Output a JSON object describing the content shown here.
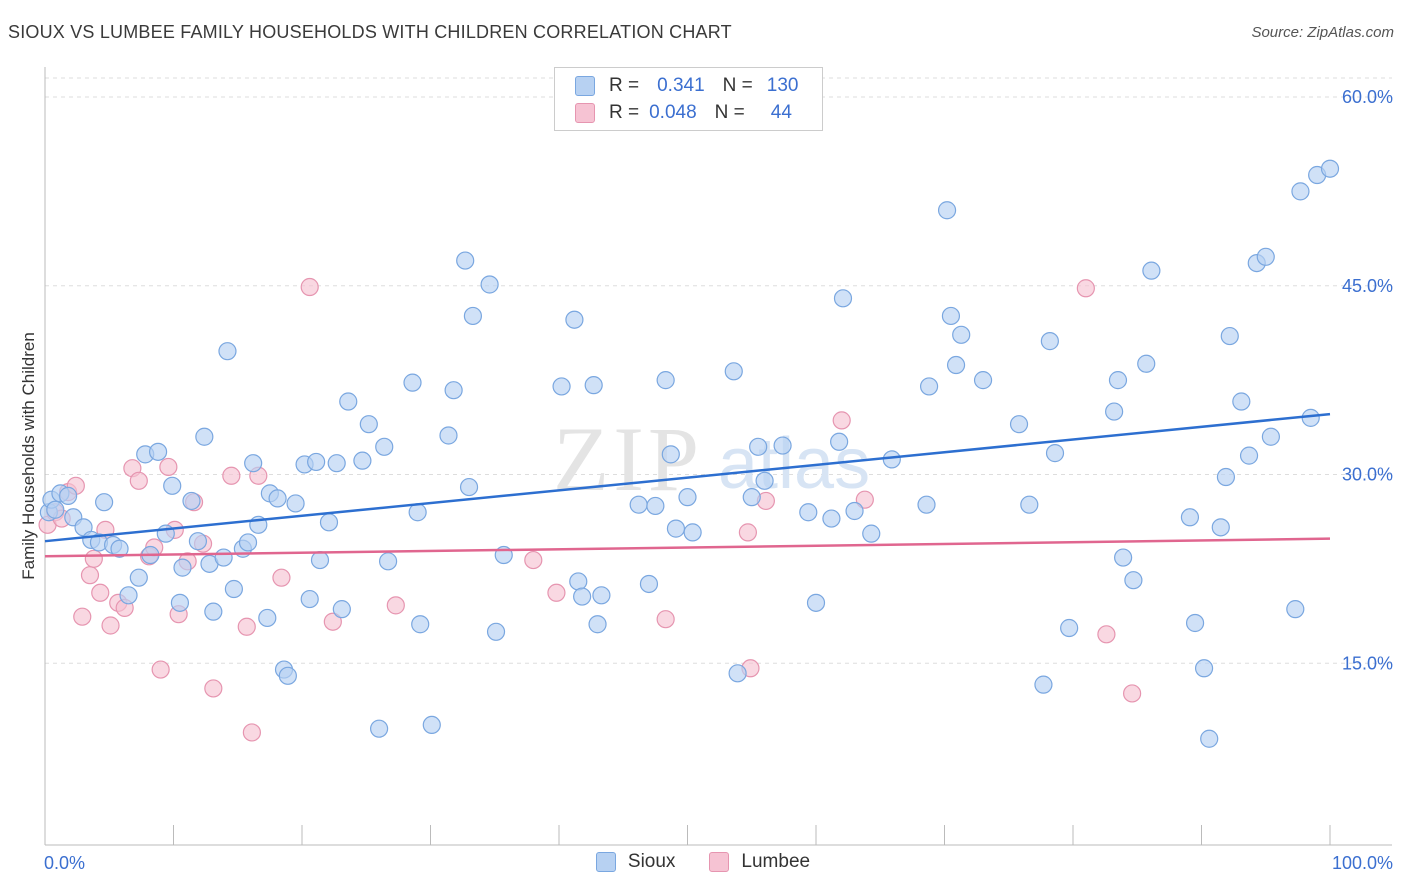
{
  "header": {
    "title": "SIOUX VS LUMBEE FAMILY HOUSEHOLDS WITH CHILDREN CORRELATION CHART",
    "source": "Source: ZipAtlas.com"
  },
  "watermark": {
    "zip": "ZIP",
    "atlas": "atlas"
  },
  "legend_top": {
    "r_label": "R =",
    "n_label": "N =",
    "rows": [
      {
        "r": "0.341",
        "n": "130"
      },
      {
        "r": "0.048",
        "n": "44"
      }
    ]
  },
  "colors": {
    "sioux_fill": "#b7d1f2",
    "sioux_stroke": "#7aa7e0",
    "sioux_line": "#2d6fd0",
    "lumbee_fill": "#f6c3d3",
    "lumbee_stroke": "#e695b0",
    "lumbee_line": "#e0668f",
    "grid": "#dddddd",
    "tick_label": "#3b6fd0"
  },
  "chart_data": {
    "type": "scatter",
    "title": "SIOUX VS LUMBEE FAMILY HOUSEHOLDS WITH CHILDREN CORRELATION CHART",
    "xlabel": "",
    "ylabel": "Family Households with Children",
    "xlim": [
      0,
      100
    ],
    "ylim": [
      0,
      60
    ],
    "x_tick_labels": [
      "0.0%",
      "100.0%"
    ],
    "y_ticks": [
      15,
      30,
      45,
      60
    ],
    "y_tick_labels": [
      "15.0%",
      "30.0%",
      "45.0%",
      "60.0%"
    ],
    "grid": true,
    "legend": "bottom",
    "series": [
      {
        "name": "Sioux",
        "r": 0.341,
        "n": 130,
        "trend": [
          [
            0,
            24.7
          ],
          [
            100,
            34.8
          ]
        ],
        "points": [
          [
            0.3,
            27.0
          ],
          [
            0.5,
            28.0
          ],
          [
            0.8,
            27.2
          ],
          [
            1.2,
            28.5
          ],
          [
            1.8,
            28.3
          ],
          [
            2.2,
            26.6
          ],
          [
            3.0,
            25.8
          ],
          [
            3.6,
            24.8
          ],
          [
            4.2,
            24.6
          ],
          [
            4.6,
            27.8
          ],
          [
            5.3,
            24.4
          ],
          [
            5.8,
            24.1
          ],
          [
            6.5,
            20.4
          ],
          [
            7.3,
            21.8
          ],
          [
            7.8,
            31.6
          ],
          [
            8.2,
            23.6
          ],
          [
            8.8,
            31.8
          ],
          [
            9.4,
            25.3
          ],
          [
            9.9,
            29.1
          ],
          [
            10.5,
            19.8
          ],
          [
            10.7,
            22.6
          ],
          [
            11.4,
            27.9
          ],
          [
            11.9,
            24.7
          ],
          [
            12.4,
            33.0
          ],
          [
            12.8,
            22.9
          ],
          [
            13.1,
            19.1
          ],
          [
            13.9,
            23.4
          ],
          [
            14.2,
            39.8
          ],
          [
            14.7,
            20.9
          ],
          [
            15.4,
            24.1
          ],
          [
            15.8,
            24.6
          ],
          [
            16.2,
            30.9
          ],
          [
            16.6,
            26.0
          ],
          [
            17.3,
            18.6
          ],
          [
            17.5,
            28.5
          ],
          [
            18.1,
            28.1
          ],
          [
            18.6,
            14.5
          ],
          [
            18.9,
            14.0
          ],
          [
            19.5,
            27.7
          ],
          [
            20.2,
            30.8
          ],
          [
            20.6,
            20.1
          ],
          [
            21.1,
            31.0
          ],
          [
            21.4,
            23.2
          ],
          [
            22.1,
            26.2
          ],
          [
            22.7,
            30.9
          ],
          [
            23.1,
            19.3
          ],
          [
            23.6,
            35.8
          ],
          [
            24.7,
            31.1
          ],
          [
            25.2,
            34.0
          ],
          [
            26.0,
            9.8
          ],
          [
            26.4,
            32.2
          ],
          [
            26.7,
            23.1
          ],
          [
            28.6,
            37.3
          ],
          [
            29.0,
            27.0
          ],
          [
            29.2,
            18.1
          ],
          [
            30.1,
            10.1
          ],
          [
            31.4,
            33.1
          ],
          [
            31.8,
            36.7
          ],
          [
            32.7,
            47.0
          ],
          [
            33.0,
            29.0
          ],
          [
            33.3,
            42.6
          ],
          [
            34.6,
            45.1
          ],
          [
            35.1,
            17.5
          ],
          [
            35.7,
            23.6
          ],
          [
            40.2,
            37.0
          ],
          [
            41.2,
            42.3
          ],
          [
            41.5,
            21.5
          ],
          [
            41.8,
            20.3
          ],
          [
            42.7,
            37.1
          ],
          [
            43.0,
            18.1
          ],
          [
            43.3,
            20.4
          ],
          [
            46.2,
            27.6
          ],
          [
            47.0,
            21.3
          ],
          [
            47.5,
            27.5
          ],
          [
            48.3,
            37.5
          ],
          [
            48.7,
            31.6
          ],
          [
            49.1,
            25.7
          ],
          [
            50.0,
            28.2
          ],
          [
            50.4,
            25.4
          ],
          [
            53.6,
            38.2
          ],
          [
            53.9,
            14.2
          ],
          [
            55.0,
            28.2
          ],
          [
            55.5,
            32.2
          ],
          [
            56.0,
            29.5
          ],
          [
            57.4,
            32.3
          ],
          [
            59.4,
            27.0
          ],
          [
            60.0,
            19.8
          ],
          [
            61.2,
            26.5
          ],
          [
            61.8,
            32.6
          ],
          [
            62.1,
            44.0
          ],
          [
            63.0,
            27.1
          ],
          [
            64.3,
            25.3
          ],
          [
            65.9,
            31.2
          ],
          [
            68.6,
            27.6
          ],
          [
            68.8,
            37.0
          ],
          [
            70.2,
            51.0
          ],
          [
            70.5,
            42.6
          ],
          [
            70.9,
            38.7
          ],
          [
            71.3,
            41.1
          ],
          [
            73.0,
            37.5
          ],
          [
            75.8,
            34.0
          ],
          [
            76.6,
            27.6
          ],
          [
            77.7,
            13.3
          ],
          [
            78.2,
            40.6
          ],
          [
            78.6,
            31.7
          ],
          [
            79.7,
            17.8
          ],
          [
            83.2,
            35.0
          ],
          [
            83.5,
            37.5
          ],
          [
            83.9,
            23.4
          ],
          [
            84.7,
            21.6
          ],
          [
            85.7,
            38.8
          ],
          [
            86.1,
            46.2
          ],
          [
            89.1,
            26.6
          ],
          [
            89.5,
            18.2
          ],
          [
            90.2,
            14.6
          ],
          [
            90.6,
            9.0
          ],
          [
            91.5,
            25.8
          ],
          [
            91.9,
            29.8
          ],
          [
            92.2,
            41.0
          ],
          [
            93.1,
            35.8
          ],
          [
            93.7,
            31.5
          ],
          [
            94.3,
            46.8
          ],
          [
            95.0,
            47.3
          ],
          [
            95.4,
            33.0
          ],
          [
            97.3,
            19.3
          ],
          [
            97.7,
            52.5
          ],
          [
            98.5,
            34.5
          ],
          [
            99.0,
            53.8
          ],
          [
            100.0,
            54.3
          ]
        ]
      },
      {
        "name": "Lumbee",
        "r": 0.048,
        "n": 44,
        "trend": [
          [
            0,
            23.5
          ],
          [
            100,
            24.9
          ]
        ],
        "points": [
          [
            0.2,
            26.0
          ],
          [
            0.8,
            27.0
          ],
          [
            1.3,
            26.5
          ],
          [
            1.8,
            28.6
          ],
          [
            2.4,
            29.1
          ],
          [
            2.9,
            18.7
          ],
          [
            3.5,
            22.0
          ],
          [
            3.8,
            23.3
          ],
          [
            4.3,
            20.6
          ],
          [
            4.7,
            25.6
          ],
          [
            5.1,
            18.0
          ],
          [
            5.7,
            19.8
          ],
          [
            6.2,
            19.4
          ],
          [
            6.8,
            30.5
          ],
          [
            7.3,
            29.5
          ],
          [
            8.1,
            23.5
          ],
          [
            8.5,
            24.2
          ],
          [
            9.0,
            14.5
          ],
          [
            9.6,
            30.6
          ],
          [
            10.1,
            25.6
          ],
          [
            10.4,
            18.9
          ],
          [
            11.1,
            23.1
          ],
          [
            11.6,
            27.8
          ],
          [
            12.3,
            24.5
          ],
          [
            13.1,
            13.0
          ],
          [
            14.5,
            29.9
          ],
          [
            15.7,
            17.9
          ],
          [
            16.1,
            9.5
          ],
          [
            16.6,
            29.9
          ],
          [
            18.4,
            21.8
          ],
          [
            20.6,
            44.9
          ],
          [
            22.4,
            18.3
          ],
          [
            27.3,
            19.6
          ],
          [
            38.0,
            23.2
          ],
          [
            39.8,
            20.6
          ],
          [
            48.3,
            18.5
          ],
          [
            54.7,
            25.4
          ],
          [
            54.9,
            14.6
          ],
          [
            56.1,
            27.9
          ],
          [
            62.0,
            34.3
          ],
          [
            63.8,
            28.0
          ],
          [
            81.0,
            44.8
          ],
          [
            82.6,
            17.3
          ],
          [
            84.6,
            12.6
          ]
        ]
      }
    ]
  },
  "bottom_legend": [
    {
      "name": "Sioux"
    },
    {
      "name": "Lumbee"
    }
  ]
}
